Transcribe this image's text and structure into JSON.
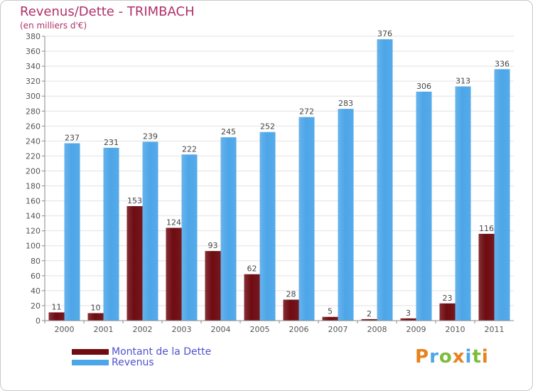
{
  "title": "Revenus/Dette - TRIMBACH",
  "subtitle": "(en milliers d'€)",
  "colors": {
    "dette": "#6e0c12",
    "revenus": "#4da6e8",
    "title": "#b0306a",
    "legend_text": "#5050d0"
  },
  "legend": [
    {
      "label": "Montant de la Dette",
      "color": "#6e0c12"
    },
    {
      "label": "Revenus",
      "color": "#4da6e8"
    }
  ],
  "logo": {
    "text": "Proxiti",
    "letters": [
      {
        "ch": "P",
        "color": "#e8821e"
      },
      {
        "ch": "r",
        "color": "#4da6e8"
      },
      {
        "ch": "o",
        "color": "#7cbd3c"
      },
      {
        "ch": "x",
        "color": "#e8821e"
      },
      {
        "ch": "i",
        "color": "#4da6e8"
      },
      {
        "ch": "t",
        "color": "#7cbd3c"
      },
      {
        "ch": "i",
        "color": "#e8821e"
      }
    ]
  },
  "chart_data": {
    "type": "bar",
    "categories": [
      "2000",
      "2001",
      "2002",
      "2003",
      "2004",
      "2005",
      "2006",
      "2007",
      "2008",
      "2009",
      "2010",
      "2011"
    ],
    "series": [
      {
        "name": "Montant de la Dette",
        "values": [
          11,
          10,
          153,
          124,
          93,
          62,
          28,
          5,
          2,
          3,
          23,
          116
        ]
      },
      {
        "name": "Revenus",
        "values": [
          237,
          231,
          239,
          222,
          245,
          252,
          272,
          283,
          376,
          306,
          313,
          336
        ]
      }
    ],
    "ylim": [
      0,
      380
    ],
    "yticks": [
      0,
      20,
      40,
      60,
      80,
      100,
      120,
      140,
      160,
      180,
      200,
      220,
      240,
      260,
      280,
      300,
      320,
      340,
      360,
      380
    ],
    "grid": true,
    "legend_position": "bottom-left"
  }
}
